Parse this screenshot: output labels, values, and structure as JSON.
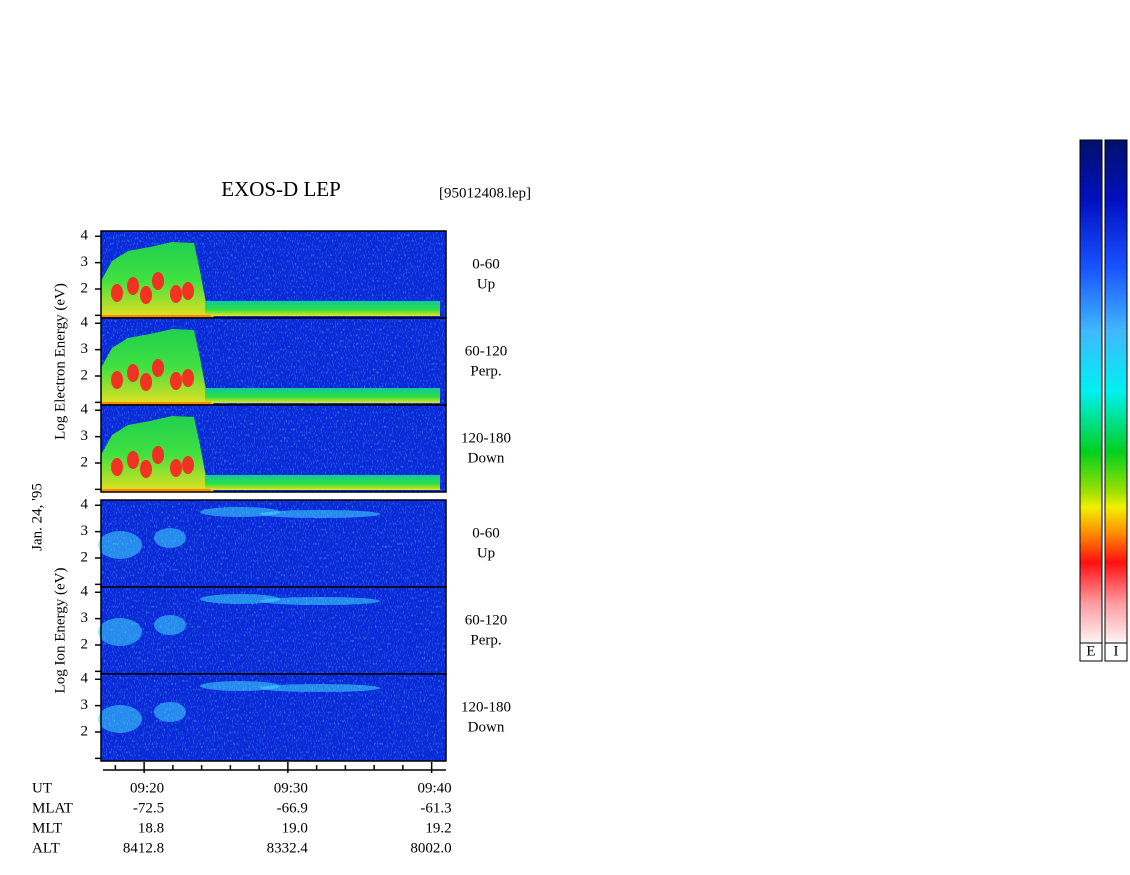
{
  "title": "EXOS-D LEP",
  "file": "[95012408.lep]",
  "date": "Jan. 24, '95",
  "chart_data": {
    "type": "spectrogram",
    "ylim": [
      0.9,
      4.2
    ],
    "yticks": [
      2,
      3,
      4
    ],
    "yminorticks": [
      1
    ],
    "xlim": [
      "09:17",
      "09:41"
    ],
    "xticks": [
      "09:20",
      "09:30",
      "09:40"
    ],
    "xminorticks": [
      "09:18",
      "09:22",
      "09:24",
      "09:26",
      "09:28",
      "09:32",
      "09:34",
      "09:36",
      "09:38"
    ],
    "xlabel": "UT",
    "groups": [
      {
        "ylabel": "Log Electron Energy (eV)",
        "colorbar": "E",
        "panels": [
          {
            "pitch": "0-60",
            "direction": "Up"
          },
          {
            "pitch": "60-120",
            "direction": "Perp."
          },
          {
            "pitch": "120-180",
            "direction": "Down"
          }
        ]
      },
      {
        "ylabel": "Log Ion Energy (eV)",
        "colorbar": "I",
        "panels": [
          {
            "pitch": "0-60",
            "direction": "Up"
          },
          {
            "pitch": "60-120",
            "direction": "Perp."
          },
          {
            "pitch": "120-180",
            "direction": "Down"
          }
        ]
      }
    ],
    "ephemeris": [
      {
        "label": "MLAT",
        "values": [
          "-72.5",
          "-66.9",
          "-61.3"
        ]
      },
      {
        "label": "MLT",
        "values": [
          "18.8",
          "19.0",
          "19.2"
        ]
      },
      {
        "label": "ALT",
        "values": [
          "8412.8",
          "8332.4",
          "8002.0"
        ]
      }
    ]
  }
}
